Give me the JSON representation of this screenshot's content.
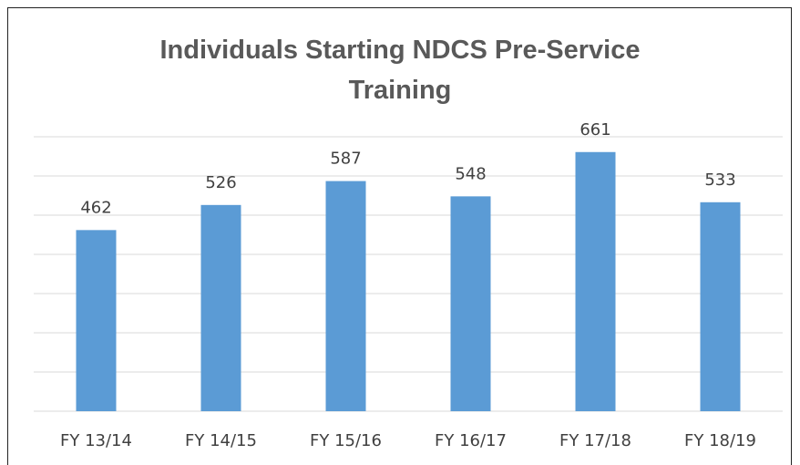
{
  "chart_data": {
    "type": "bar",
    "title": "Individuals Starting NDCS Pre-Service Training",
    "categories": [
      "FY 13/14",
      "FY 14/15",
      "FY 15/16",
      "FY 16/17",
      "FY 17/18",
      "FY 18/19"
    ],
    "values": [
      462,
      526,
      587,
      548,
      661,
      533
    ],
    "color": "#5b9bd5",
    "ylim": [
      0,
      700
    ],
    "yticks": [
      0,
      100,
      200,
      300,
      400,
      500,
      600,
      700
    ],
    "grid": true,
    "tick_labels": false
  }
}
